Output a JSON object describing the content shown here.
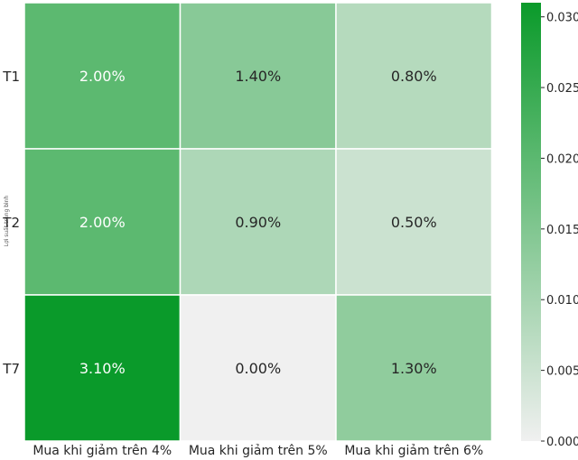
{
  "chart_data": {
    "type": "heatmap",
    "title": "",
    "xlabel": "",
    "ylabel": "Lợi suất trung bình",
    "x_categories": [
      "Mua khi giảm trên 4%",
      "Mua khi giảm trên 5%",
      "Mua khi giảm trên 6%"
    ],
    "y_categories": [
      "T1",
      "T2",
      "T7"
    ],
    "values": [
      [
        0.02,
        0.014,
        0.008
      ],
      [
        0.02,
        0.009,
        0.005
      ],
      [
        0.031,
        0.0,
        0.013
      ]
    ],
    "cell_labels": [
      [
        "2.00%",
        "1.40%",
        "0.80%"
      ],
      [
        "2.00%",
        "0.90%",
        "0.50%"
      ],
      [
        "3.10%",
        "0.00%",
        "1.30%"
      ]
    ],
    "colorbar": {
      "range": [
        0.0,
        0.031
      ],
      "ticks": [
        0.0,
        0.005,
        0.01,
        0.015,
        0.02,
        0.025,
        0.03
      ],
      "tick_labels": [
        "0.000",
        "0.005",
        "0.010",
        "0.015",
        "0.020",
        "0.025",
        "0.030"
      ],
      "color_low": "#f0f0f0",
      "color_high": "#0a9a2a"
    },
    "label_dark_color": "#262626",
    "label_light_color": "#ffffff",
    "grid": true,
    "legend": "colorbar-right"
  }
}
